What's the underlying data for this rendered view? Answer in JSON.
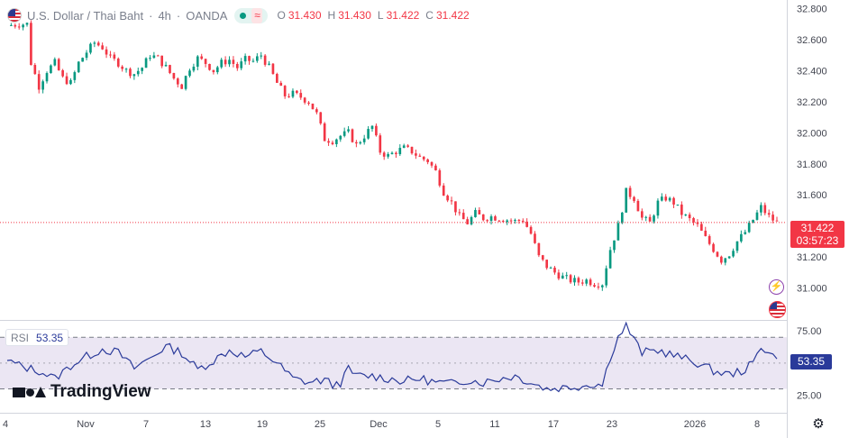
{
  "header": {
    "symbol": "U.S. Dollar / Thai Baht",
    "interval": "4h",
    "source": "OANDA",
    "sep1": "·",
    "sep2": "·",
    "ohlc": {
      "o_label": "O",
      "o": "31.430",
      "h_label": "H",
      "h": "31.430",
      "l_label": "L",
      "l": "31.422",
      "c_label": "C",
      "c": "31.422"
    },
    "colors": {
      "up": "#089981",
      "down": "#f23645"
    }
  },
  "price_badge": {
    "price": "31.422",
    "countdown": "03:57:23",
    "bg": "#f23645"
  },
  "rsi_panel": {
    "label": "RSI",
    "value": "53.35",
    "badge_value": "53.35",
    "line_color": "#2a3a9a",
    "band_color": "#ebe6f3"
  },
  "watermark": {
    "text": "TradingView"
  },
  "icons": {
    "flag": "us-flag-icon",
    "lightning": "lightning-icon",
    "settings": "gear-icon",
    "waves": "waves-icon"
  },
  "chart_data": [
    {
      "type": "candlestick",
      "title": "U.S. Dollar / Thai Baht · 4h · OANDA",
      "y_ticks": [
        "32.800",
        "32.600",
        "32.400",
        "32.200",
        "32.000",
        "31.800",
        "31.600",
        "31.400",
        "31.200",
        "31.000"
      ],
      "ylim": [
        30.87,
        32.82
      ],
      "x_ticks": [
        "4",
        "Nov",
        "7",
        "13",
        "19",
        "25",
        "Dec",
        "5",
        "11",
        "17",
        "23",
        "2026",
        "8"
      ],
      "last_price": 31.422,
      "grid": false,
      "close_path": [
        [
          0,
          32.69
        ],
        [
          3,
          32.7
        ],
        [
          5,
          32.7
        ],
        [
          6,
          32.45
        ],
        [
          8,
          32.3
        ],
        [
          10,
          32.4
        ],
        [
          12,
          32.45
        ],
        [
          14,
          32.35
        ],
        [
          16,
          32.32
        ],
        [
          18,
          32.45
        ],
        [
          20,
          32.52
        ],
        [
          22,
          32.58
        ],
        [
          24,
          32.55
        ],
        [
          26,
          32.48
        ],
        [
          28,
          32.45
        ],
        [
          30,
          32.4
        ],
        [
          32,
          32.38
        ],
        [
          34,
          32.42
        ],
        [
          36,
          32.5
        ],
        [
          38,
          32.48
        ],
        [
          40,
          32.42
        ],
        [
          42,
          32.35
        ],
        [
          44,
          32.3
        ],
        [
          46,
          32.42
        ],
        [
          48,
          32.48
        ],
        [
          50,
          32.45
        ],
        [
          52,
          32.4
        ],
        [
          54,
          32.45
        ],
        [
          56,
          32.47
        ],
        [
          58,
          32.42
        ],
        [
          60,
          32.47
        ],
        [
          62,
          32.46
        ],
        [
          64,
          32.5
        ],
        [
          66,
          32.42
        ],
        [
          68,
          32.32
        ],
        [
          70,
          32.24
        ],
        [
          72,
          32.25
        ],
        [
          74,
          32.23
        ],
        [
          76,
          32.2
        ],
        [
          78,
          32.12
        ],
        [
          80,
          31.96
        ],
        [
          82,
          31.95
        ],
        [
          84,
          31.98
        ],
        [
          86,
          32.0
        ],
        [
          88,
          31.92
        ],
        [
          90,
          31.98
        ],
        [
          92,
          32.04
        ],
        [
          94,
          31.88
        ],
        [
          96,
          31.85
        ],
        [
          98,
          31.88
        ],
        [
          100,
          31.9
        ],
        [
          102,
          31.88
        ],
        [
          104,
          31.84
        ],
        [
          106,
          31.82
        ],
        [
          108,
          31.75
        ],
        [
          110,
          31.62
        ],
        [
          112,
          31.55
        ],
        [
          114,
          31.46
        ],
        [
          116,
          31.42
        ],
        [
          118,
          31.48
        ],
        [
          120,
          31.45
        ],
        [
          122,
          31.46
        ],
        [
          124,
          31.45
        ],
        [
          126,
          31.44
        ],
        [
          128,
          31.43
        ],
        [
          130,
          31.44
        ],
        [
          132,
          31.35
        ],
        [
          134,
          31.2
        ],
        [
          136,
          31.14
        ],
        [
          138,
          31.1
        ],
        [
          140,
          31.07
        ],
        [
          142,
          31.05
        ],
        [
          144,
          31.04
        ],
        [
          146,
          31.05
        ],
        [
          148,
          31.03
        ],
        [
          150,
          31.03
        ],
        [
          152,
          31.25
        ],
        [
          154,
          31.4
        ],
        [
          156,
          31.62
        ],
        [
          158,
          31.58
        ],
        [
          160,
          31.45
        ],
        [
          162,
          31.42
        ],
        [
          164,
          31.55
        ],
        [
          166,
          31.58
        ],
        [
          168,
          31.55
        ],
        [
          170,
          31.48
        ],
        [
          172,
          31.44
        ],
        [
          174,
          31.4
        ],
        [
          176,
          31.32
        ],
        [
          178,
          31.25
        ],
        [
          180,
          31.18
        ],
        [
          182,
          31.22
        ],
        [
          184,
          31.3
        ],
        [
          186,
          31.36
        ],
        [
          188,
          31.44
        ],
        [
          190,
          31.52
        ],
        [
          192,
          31.46
        ],
        [
          194,
          31.42
        ]
      ]
    },
    {
      "type": "line",
      "title": "RSI",
      "y_ticks": [
        "75.00",
        "25.00"
      ],
      "ylim": [
        15,
        82
      ],
      "reference_lines": [
        70,
        50,
        30
      ],
      "last_value": 53.35,
      "values": [
        [
          0,
          52
        ],
        [
          4,
          47
        ],
        [
          8,
          44
        ],
        [
          12,
          38
        ],
        [
          16,
          48
        ],
        [
          20,
          55
        ],
        [
          24,
          61
        ],
        [
          28,
          58
        ],
        [
          32,
          46
        ],
        [
          36,
          54
        ],
        [
          40,
          63
        ],
        [
          44,
          58
        ],
        [
          48,
          45
        ],
        [
          52,
          52
        ],
        [
          56,
          60
        ],
        [
          60,
          55
        ],
        [
          64,
          59
        ],
        [
          68,
          50
        ],
        [
          72,
          38
        ],
        [
          76,
          35
        ],
        [
          80,
          37
        ],
        [
          82,
          33
        ],
        [
          84,
          35
        ],
        [
          86,
          45
        ],
        [
          88,
          40
        ],
        [
          92,
          40
        ],
        [
          96,
          38
        ],
        [
          100,
          36
        ],
        [
          104,
          38
        ],
        [
          108,
          35
        ],
        [
          112,
          34
        ],
        [
          116,
          37
        ],
        [
          120,
          35
        ],
        [
          124,
          38
        ],
        [
          128,
          40
        ],
        [
          132,
          35
        ],
        [
          136,
          30
        ],
        [
          140,
          31
        ],
        [
          144,
          32
        ],
        [
          148,
          34
        ],
        [
          150,
          33
        ],
        [
          152,
          55
        ],
        [
          154,
          70
        ],
        [
          156,
          79
        ],
        [
          158,
          68
        ],
        [
          160,
          58
        ],
        [
          164,
          60
        ],
        [
          166,
          58
        ],
        [
          170,
          54
        ],
        [
          174,
          50
        ],
        [
          178,
          44
        ],
        [
          182,
          41
        ],
        [
          186,
          45
        ],
        [
          188,
          50
        ],
        [
          190,
          62
        ],
        [
          192,
          60
        ],
        [
          194,
          53.35
        ]
      ]
    }
  ]
}
